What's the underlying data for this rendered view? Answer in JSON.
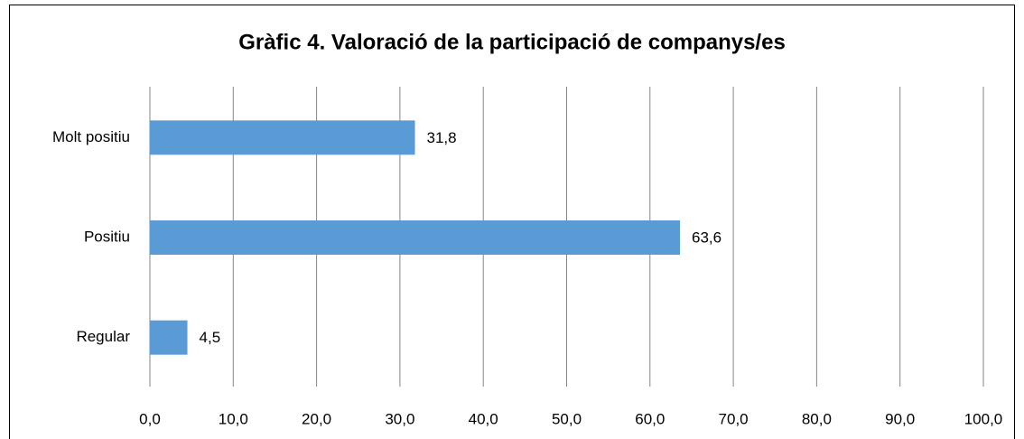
{
  "chart_data": {
    "type": "bar",
    "orientation": "horizontal",
    "title": "Gràfic 4. Valoració de la participació de companys/es",
    "categories": [
      "Molt positiu",
      "Positiu",
      "Regular"
    ],
    "values": [
      31.8,
      63.6,
      4.5
    ],
    "value_labels": [
      "31,8",
      "63,6",
      "4,5"
    ],
    "color": "#5b9bd5",
    "xlim": [
      0,
      100
    ],
    "xticks": [
      {
        "value": 0,
        "label": "0,0"
      },
      {
        "value": 10,
        "label": "10,0"
      },
      {
        "value": 20,
        "label": "20,0"
      },
      {
        "value": 30,
        "label": "30,0"
      },
      {
        "value": 40,
        "label": "40,0"
      },
      {
        "value": 50,
        "label": "50,0"
      },
      {
        "value": 60,
        "label": "60,0"
      },
      {
        "value": 70,
        "label": "70,0"
      },
      {
        "value": 80,
        "label": "80,0"
      },
      {
        "value": 90,
        "label": "90,0"
      },
      {
        "value": 100,
        "label": "100,0"
      }
    ],
    "grid": true
  }
}
